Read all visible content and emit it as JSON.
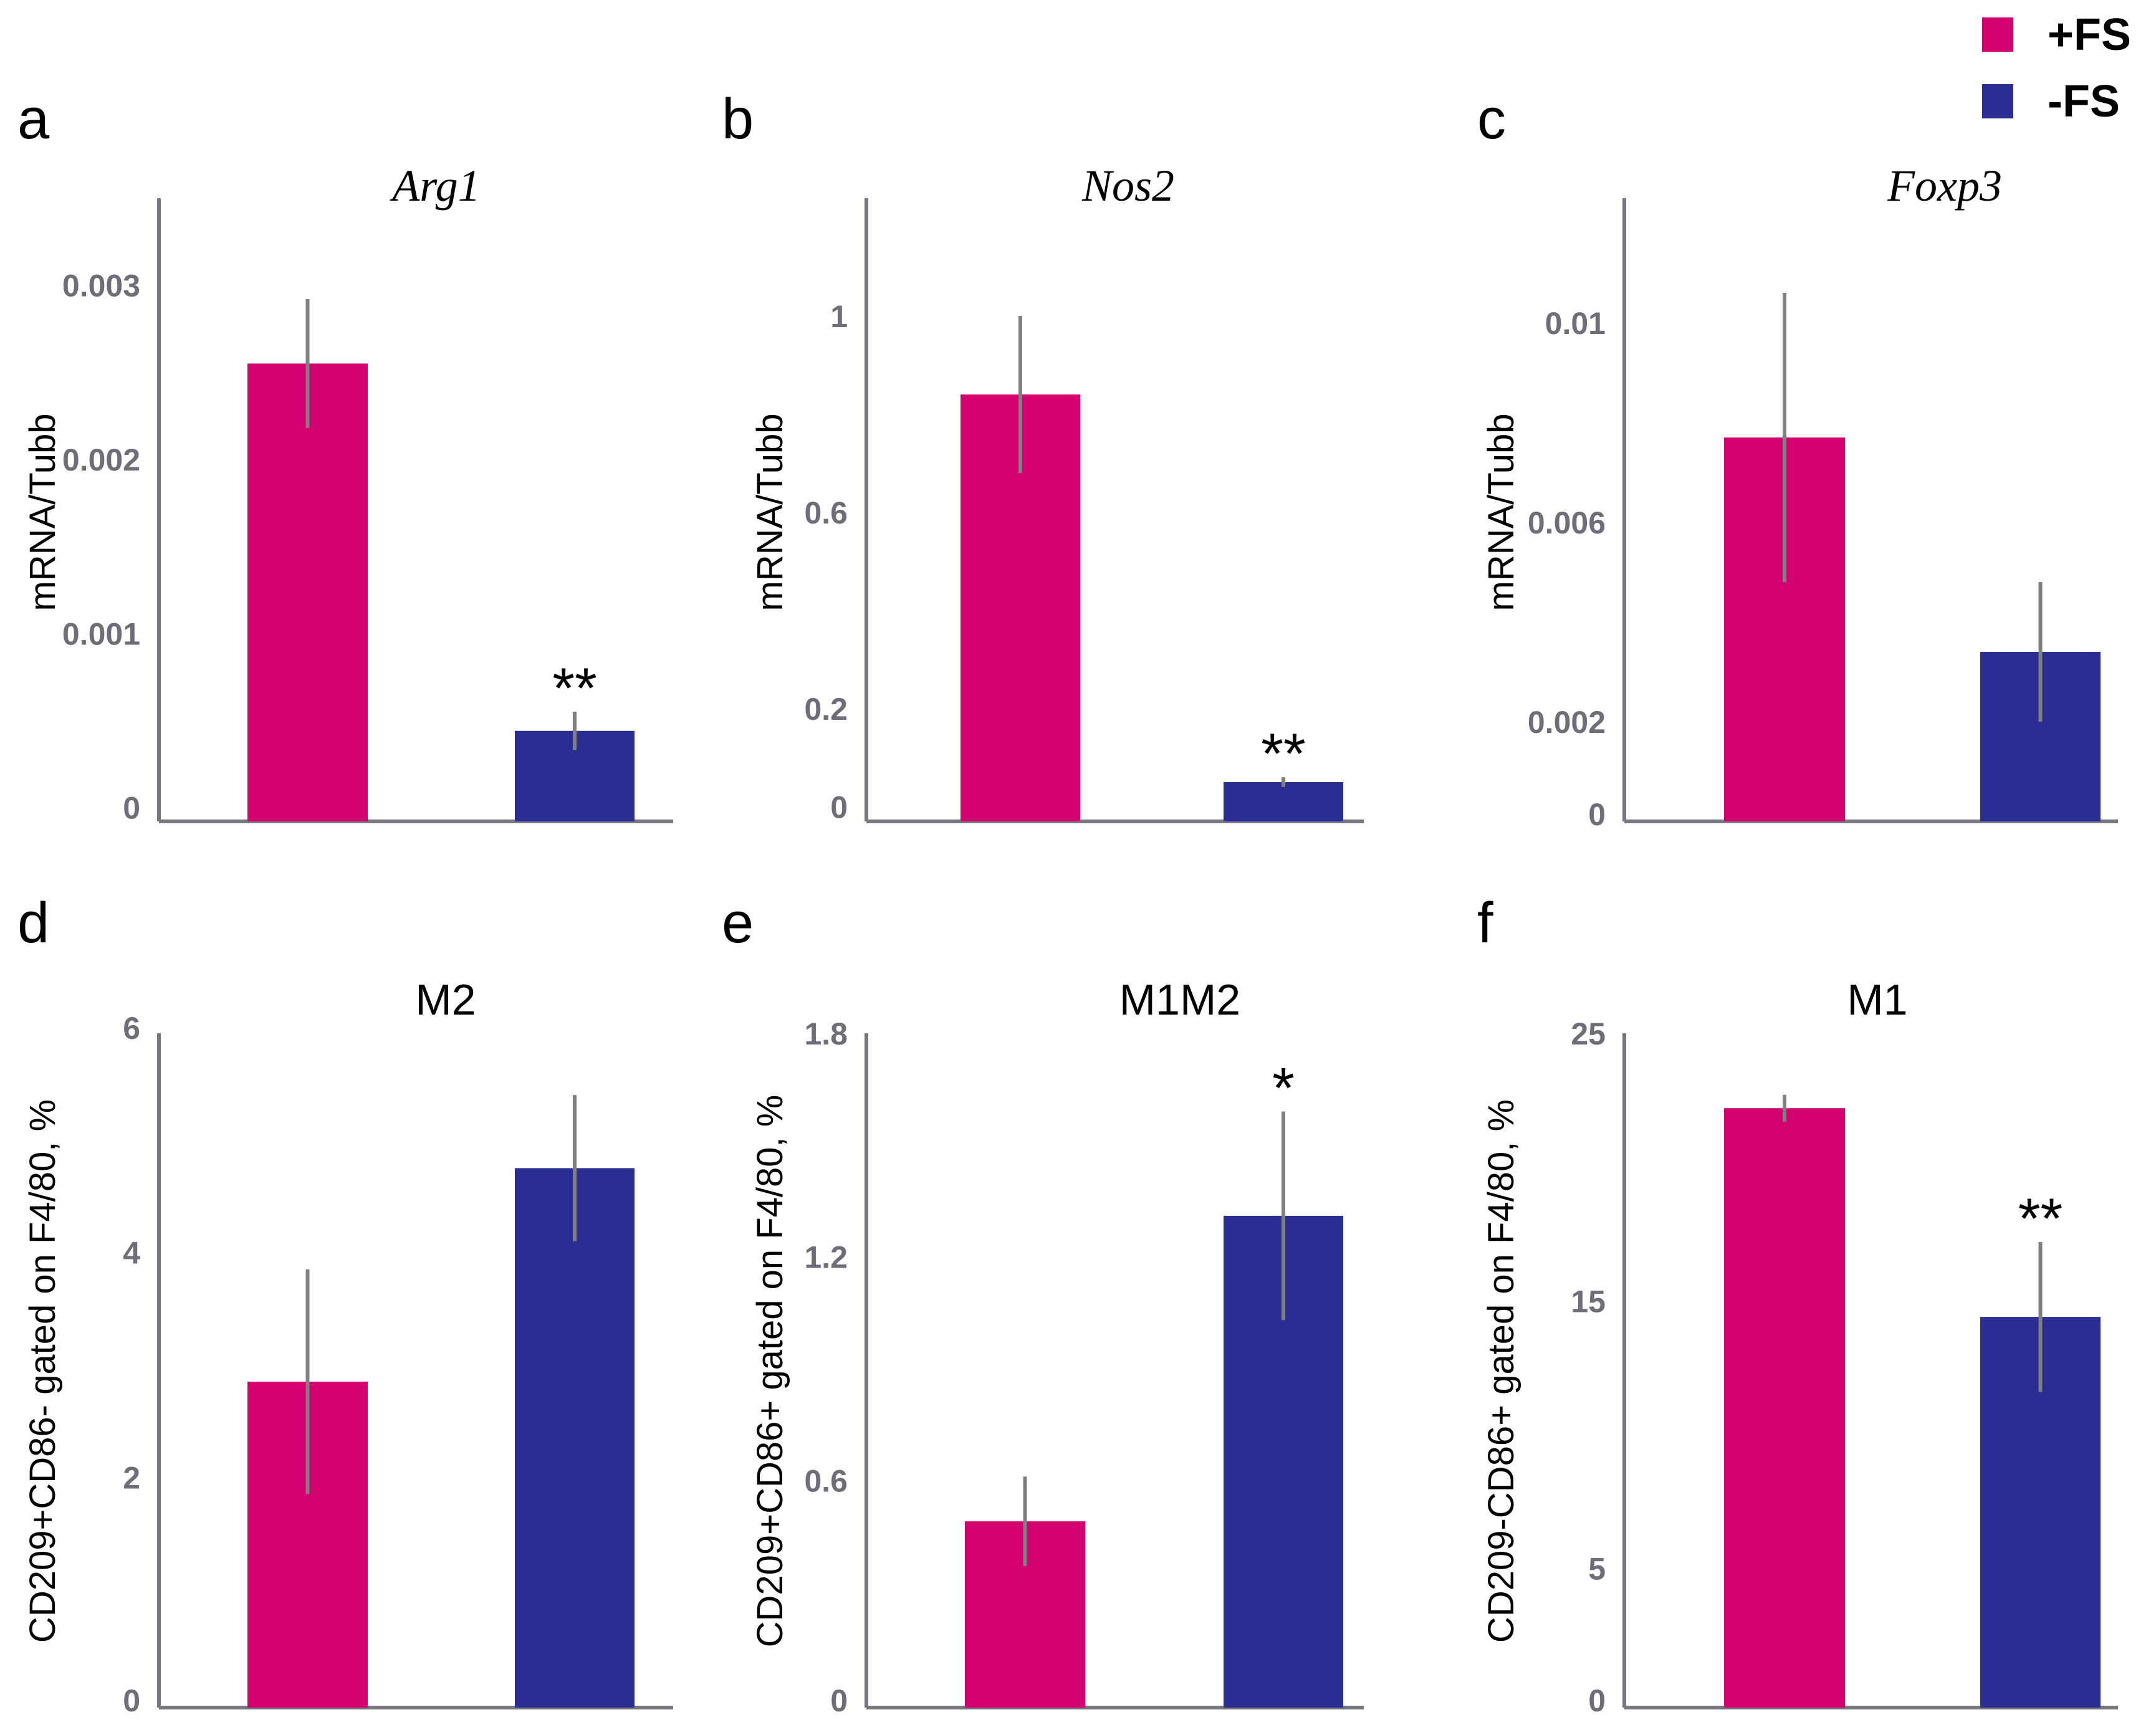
{
  "colors": {
    "plus_fs": "#d3006f",
    "minus_fs": "#2a2d91",
    "axis": "#77777f",
    "error": "#808080"
  },
  "legend": [
    {
      "label": "+FS",
      "color": "#d3006f"
    },
    {
      "label": "-FS",
      "color": "#2a2d91"
    }
  ],
  "chart_data": [
    {
      "type": "bar",
      "panel": "a",
      "title": "Arg1",
      "title_style": "italic",
      "ylabel": "mRNA/Tubb",
      "categories": [
        "+FS",
        "-FS"
      ],
      "values": [
        0.00255,
        0.00044
      ],
      "errors": [
        0.00037,
        0.00011
      ],
      "ylim": [
        -8e-05,
        0.0035
      ],
      "ticks": [
        0,
        0.001,
        0.002,
        0.003
      ],
      "tick_labels": [
        "0",
        "0.001",
        "0.002",
        "0.003"
      ],
      "significance": [
        "",
        "**"
      ]
    },
    {
      "type": "bar",
      "panel": "b",
      "title": "Nos2",
      "title_style": "italic",
      "ylabel": "mRNA/Tubb",
      "categories": [
        "+FS",
        "-FS"
      ],
      "values": [
        0.84,
        0.05
      ],
      "errors": [
        0.16,
        0.01
      ],
      "ylim": [
        -0.03,
        1.24
      ],
      "ticks": [
        0,
        0.2,
        0.6,
        1
      ],
      "tick_labels": [
        "0",
        "0.2",
        "0.6",
        "1"
      ],
      "significance": [
        "",
        "**"
      ]
    },
    {
      "type": "bar",
      "panel": "c",
      "title": "Foxp3",
      "title_style": "italic",
      "ylabel": "mRNA/Tubb",
      "categories": [
        "+FS",
        "-FS"
      ],
      "values": [
        0.0077,
        0.0034
      ],
      "errors": [
        0.0029,
        0.0014
      ],
      "ylim": [
        0,
        0.0125
      ],
      "ticks": [
        0,
        0.002,
        0.006,
        0.01
      ],
      "tick_labels": [
        "0",
        "0.002",
        "0.006",
        "0.01"
      ],
      "significance": [
        "",
        ""
      ]
    },
    {
      "type": "bar",
      "panel": "d",
      "title": "M2",
      "title_style": "plain",
      "ylabel": "CD209+CD86- gated on F4/80, %",
      "categories": [
        "+FS",
        "-FS"
      ],
      "values": [
        2.85,
        4.75
      ],
      "errors": [
        1.0,
        0.65
      ],
      "ylim": [
        -0.05,
        5.95
      ],
      "ticks": [
        0,
        2,
        4,
        6
      ],
      "tick_labels": [
        "0",
        "2",
        "4",
        "6"
      ],
      "significance": [
        "",
        ""
      ]
    },
    {
      "type": "bar",
      "panel": "e",
      "title": "M1M2",
      "title_style": "plain",
      "ylabel": "CD209+CD86+ gated on F4/80, %",
      "categories": [
        "+FS",
        "-FS"
      ],
      "values": [
        0.49,
        1.31
      ],
      "errors": [
        0.12,
        0.28
      ],
      "ylim": [
        -0.01,
        1.8
      ],
      "ticks": [
        0,
        0.6,
        1.2,
        1.8
      ],
      "tick_labels": [
        "0",
        "0.6",
        "1.2",
        "1.8"
      ],
      "significance": [
        "",
        "*"
      ]
    },
    {
      "type": "bar",
      "panel": "f",
      "title": "M1",
      "title_style": "plain",
      "ylabel": "CD209-CD86+ gated on F4/80, %",
      "categories": [
        "+FS",
        "-FS"
      ],
      "values": [
        22.2,
        14.4
      ],
      "errors": [
        0.5,
        2.8
      ],
      "ylim": [
        -0.2,
        25
      ],
      "ticks": [
        0,
        5,
        15,
        25
      ],
      "tick_labels": [
        "0",
        "5",
        "15",
        "25"
      ],
      "significance": [
        "",
        "**"
      ]
    }
  ]
}
